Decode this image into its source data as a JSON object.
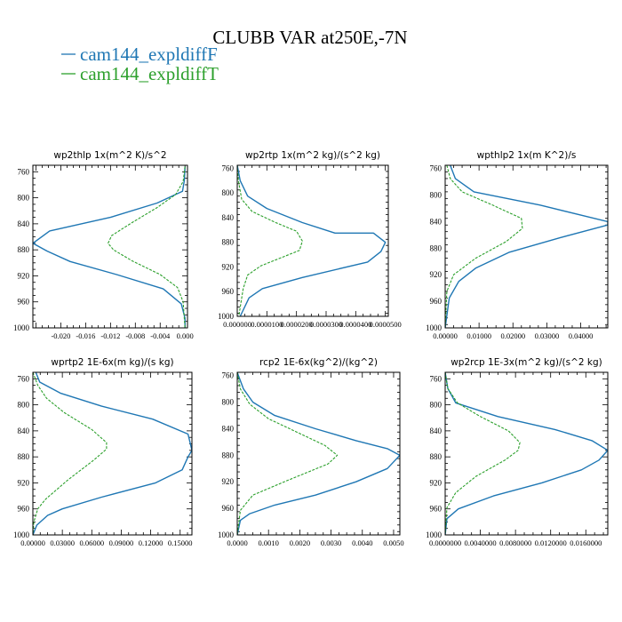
{
  "title": "CLUBB VAR at250E,-7N",
  "legend": [
    {
      "label": "cam144_expldiffF",
      "color": "#1f77b4"
    },
    {
      "label": "cam144_expldiffT",
      "color": "#2ca02c"
    }
  ],
  "chart_data": [
    {
      "type": "line",
      "title": "wp2thlp   1x(m^2 K)/s^2",
      "xlim": [
        -0.0245,
        0.0004
      ],
      "ylim": [
        1000,
        750
      ],
      "xticks": [
        -0.02,
        -0.016,
        -0.012,
        -0.008,
        -0.004,
        0.0
      ],
      "xtick_labels": [
        "-0.020",
        "-0.016",
        "-0.012",
        "-0.008",
        "-0.004",
        "0.000"
      ],
      "yticks": [
        760,
        800,
        840,
        880,
        920,
        960,
        1000
      ],
      "series": [
        {
          "name": "cam144_expldiffF",
          "x": [
            0.0,
            -0.0001,
            -0.0004,
            -0.0045,
            -0.012,
            -0.0218,
            -0.0245,
            -0.0222,
            -0.0185,
            -0.011,
            -0.0035,
            -0.0006,
            0.0,
            0.0
          ],
          "y": [
            752,
            773,
            790,
            808,
            830,
            851,
            870,
            882,
            898,
            918,
            940,
            963,
            985,
            1000
          ]
        },
        {
          "name": "cam144_expldiffT",
          "x": [
            0.0,
            -0.0003,
            -0.0015,
            -0.0045,
            -0.0085,
            -0.0118,
            -0.0124,
            -0.0115,
            -0.0085,
            -0.004,
            -0.0012,
            -0.0003,
            0.0
          ],
          "y": [
            752,
            775,
            795,
            815,
            838,
            858,
            870,
            880,
            897,
            918,
            938,
            960,
            1000
          ]
        }
      ]
    },
    {
      "type": "line",
      "title": "wp2rtp   1x(m^2 kg)/(s^2 kg)",
      "xlim": [
        0,
        5.1e-05
      ],
      "ylim": [
        1000,
        755
      ],
      "xticks": [
        0.0,
        1e-05,
        2e-05,
        3e-05,
        4e-05,
        5e-05
      ],
      "xtick_labels": [
        "0.000000",
        "0.0000100",
        "0.0000200",
        "0.0000300",
        "0.0000400",
        "0.0000500"
      ],
      "yticks": [
        760,
        800,
        840,
        880,
        920,
        960,
        1000
      ],
      "series": [
        {
          "name": "cam144_expldiffF",
          "x": [
            0.0,
            1e-06,
            3.5e-06,
            1e-05,
            2.2e-05,
            3.3e-05,
            4.6e-05,
            5e-05,
            4.85e-05,
            4.4e-05,
            2.2e-05,
            8.5e-06,
            4e-06,
            1e-06
          ],
          "y": [
            755,
            780,
            805,
            825,
            848,
            865,
            865,
            880,
            895,
            912,
            937,
            955,
            970,
            1000
          ]
        },
        {
          "name": "cam144_expldiffT",
          "x": [
            0.0,
            4e-07,
            1.5e-06,
            5e-06,
            1.3e-05,
            2e-05,
            2.2e-05,
            2.1e-05,
            8e-06,
            3.5e-06,
            2e-06,
            5e-07
          ],
          "y": [
            755,
            780,
            810,
            830,
            848,
            862,
            878,
            893,
            918,
            933,
            955,
            1000
          ]
        }
      ]
    },
    {
      "type": "line",
      "title": "wpthlp2   1x(m K^2)/s",
      "xlim": [
        0,
        0.048
      ],
      "ylim": [
        1000,
        755
      ],
      "xticks": [
        0.0,
        0.01,
        0.02,
        0.03,
        0.04
      ],
      "xtick_labels": [
        "0.00000",
        "0.01000",
        "0.02000",
        "0.03000",
        "0.04000"
      ],
      "yticks": [
        760,
        800,
        840,
        880,
        920,
        960,
        1000
      ],
      "series": [
        {
          "name": "cam144_expldiffF",
          "x": [
            0.0015,
            0.003,
            0.0085,
            0.028,
            0.048,
            0.048,
            0.034,
            0.019,
            0.009,
            0.004,
            0.0012,
            0.0
          ],
          "y": [
            755,
            775,
            795,
            815,
            840,
            845,
            864,
            886,
            910,
            930,
            955,
            1000
          ]
        },
        {
          "name": "cam144_expldiffT",
          "x": [
            0.0005,
            0.0015,
            0.005,
            0.014,
            0.0225,
            0.0228,
            0.018,
            0.009,
            0.0025,
            0.0005,
            0.0
          ],
          "y": [
            755,
            775,
            795,
            815,
            835,
            850,
            870,
            895,
            920,
            945,
            1000
          ]
        }
      ]
    },
    {
      "type": "line",
      "title": "wprtp2   1E-6x(m kg)/(s kg)",
      "xlim": [
        0,
        0.162
      ],
      "ylim": [
        1000,
        750
      ],
      "xticks": [
        0.0,
        0.03,
        0.06,
        0.09,
        0.12,
        0.15
      ],
      "xtick_labels": [
        "0.00000",
        "0.03000",
        "0.06000",
        "0.09000",
        "0.12000",
        "0.15000"
      ],
      "yticks": [
        760,
        800,
        840,
        880,
        920,
        960,
        1000
      ],
      "series": [
        {
          "name": "cam144_expldiffF",
          "x": [
            0.003,
            0.007,
            0.028,
            0.07,
            0.122,
            0.158,
            0.162,
            0.158,
            0.152,
            0.125,
            0.07,
            0.03,
            0.015,
            0.004,
            0.0
          ],
          "y": [
            750,
            765,
            782,
            802,
            822,
            845,
            870,
            880,
            900,
            920,
            942,
            960,
            970,
            985,
            1000
          ]
        },
        {
          "name": "cam144_expldiffT",
          "x": [
            0.0,
            0.005,
            0.014,
            0.032,
            0.06,
            0.075,
            0.075,
            0.062,
            0.036,
            0.013,
            0.005,
            0.001,
            0.0
          ],
          "y": [
            750,
            770,
            790,
            812,
            838,
            858,
            868,
            885,
            915,
            945,
            960,
            980,
            1000
          ]
        }
      ]
    },
    {
      "type": "line",
      "title": "rcp2   1E-6x(kg^2)/(kg^2)",
      "xlim": [
        0,
        0.0052
      ],
      "ylim": [
        1000,
        755
      ],
      "xticks": [
        0.0,
        0.001,
        0.002,
        0.003,
        0.004,
        0.005
      ],
      "xtick_labels": [
        "0.0000",
        "0.0010",
        "0.0020",
        "0.0030",
        "0.0040",
        "0.0050"
      ],
      "yticks": [
        760,
        800,
        840,
        880,
        920,
        960,
        1000
      ],
      "series": [
        {
          "name": "cam144_expldiffF",
          "x": [
            0.0,
            0.0002,
            0.0005,
            0.0012,
            0.0025,
            0.0038,
            0.0048,
            0.0052,
            0.0048,
            0.0038,
            0.0025,
            0.0012,
            0.0004,
            0.0001,
            0.0
          ],
          "y": [
            755,
            780,
            800,
            820,
            840,
            858,
            870,
            880,
            900,
            920,
            940,
            955,
            968,
            978,
            1000
          ]
        },
        {
          "name": "cam144_expldiffT",
          "x": [
            0.0,
            0.0001,
            0.0004,
            0.001,
            0.0019,
            0.0028,
            0.0032,
            0.0029,
            0.0016,
            0.0005,
            0.0001,
            0.0
          ],
          "y": [
            755,
            780,
            803,
            825,
            845,
            865,
            880,
            893,
            918,
            940,
            963,
            1000
          ]
        }
      ]
    },
    {
      "type": "line",
      "title": "wp2rcp   1E-3x(m^2 kg)/(s^2 kg)",
      "xlim": [
        0,
        0.0185
      ],
      "ylim": [
        1000,
        750
      ],
      "xticks": [
        0.0,
        0.004,
        0.008,
        0.012,
        0.016
      ],
      "xtick_labels": [
        "0.0000000",
        "0.0040000",
        "0.0080000",
        "0.0120000",
        "0.0160000"
      ],
      "yticks": [
        760,
        800,
        840,
        880,
        920,
        960,
        1000
      ],
      "series": [
        {
          "name": "cam144_expldiffF",
          "x": [
            0.0,
            0.0003,
            0.0012,
            0.006,
            0.0125,
            0.0167,
            0.0185,
            0.0175,
            0.0155,
            0.011,
            0.0055,
            0.0015,
            0.0002,
            0.0
          ],
          "y": [
            750,
            775,
            797,
            818,
            838,
            855,
            870,
            885,
            900,
            920,
            940,
            960,
            975,
            1000
          ]
        },
        {
          "name": "cam144_expldiffT",
          "x": [
            0.0,
            0.0003,
            0.0014,
            0.004,
            0.0072,
            0.0085,
            0.0083,
            0.0068,
            0.0035,
            0.0012,
            0.0002,
            0.0
          ],
          "y": [
            750,
            775,
            797,
            818,
            840,
            858,
            870,
            885,
            910,
            935,
            958,
            1000
          ]
        }
      ]
    }
  ]
}
